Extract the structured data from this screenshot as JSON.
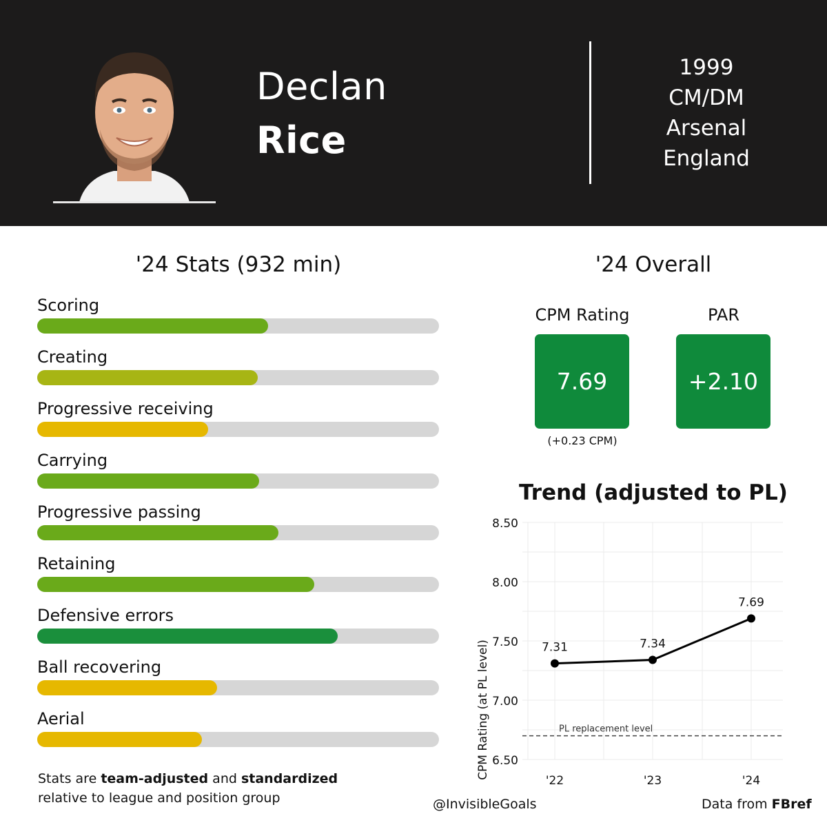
{
  "player": {
    "first_name": "Declan",
    "last_name": "Rice",
    "birth_year": "1999",
    "position": "CM/DM",
    "club": "Arsenal",
    "nation": "England"
  },
  "stats": {
    "title": "'24 Stats (932 min)",
    "items": [
      {
        "label": "Scoring",
        "fraction": 0.575,
        "color": "#6aaa1a"
      },
      {
        "label": "Creating",
        "fraction": 0.549,
        "color": "#a7b514"
      },
      {
        "label": "Progressive receiving",
        "fraction": 0.426,
        "color": "#e6b800"
      },
      {
        "label": "Carrying",
        "fraction": 0.552,
        "color": "#6aaa1a"
      },
      {
        "label": "Progressive passing",
        "fraction": 0.6,
        "color": "#6aaa1a"
      },
      {
        "label": "Retaining",
        "fraction": 0.69,
        "color": "#6aaa1a"
      },
      {
        "label": "Defensive errors",
        "fraction": 0.747,
        "color": "#1a8f3c"
      },
      {
        "label": "Ball recovering",
        "fraction": 0.448,
        "color": "#e6b800"
      },
      {
        "label": "Aerial",
        "fraction": 0.41,
        "color": "#e6b800"
      }
    ],
    "footnote": {
      "part1": "Stats are ",
      "bold1": "team-adjusted",
      "part2": " and ",
      "bold2": "standardized",
      "line2": "relative to league and position group"
    }
  },
  "overall": {
    "title": "'24 Overall",
    "cpm_label": "CPM Rating",
    "cpm_value": "7.69",
    "cpm_sub": "(+0.23 CPM)",
    "par_label": "PAR",
    "par_value": "+2.10",
    "box_color": "#0f8a3b"
  },
  "chart_data": {
    "type": "line",
    "title": "Trend (adjusted to PL)",
    "ylabel": "CPM Rating (at PL level)",
    "xlabel": "",
    "categories": [
      "'22",
      "'23",
      "'24"
    ],
    "values": [
      7.31,
      7.34,
      7.69
    ],
    "value_labels": [
      "7.31",
      "7.34",
      "7.69"
    ],
    "ylim": [
      6.5,
      8.5
    ],
    "yticks": [
      6.5,
      7.0,
      7.5,
      8.0,
      8.5
    ],
    "ytick_labels": [
      "6.50",
      "7.00",
      "7.50",
      "8.00",
      "8.50"
    ],
    "reference_line": {
      "label": "PL replacement level",
      "value": 6.7
    },
    "grid": true,
    "legend": "none"
  },
  "credits": {
    "handle": "@InvisibleGoals",
    "source_prefix": "Data from ",
    "source_name": "FBref"
  }
}
